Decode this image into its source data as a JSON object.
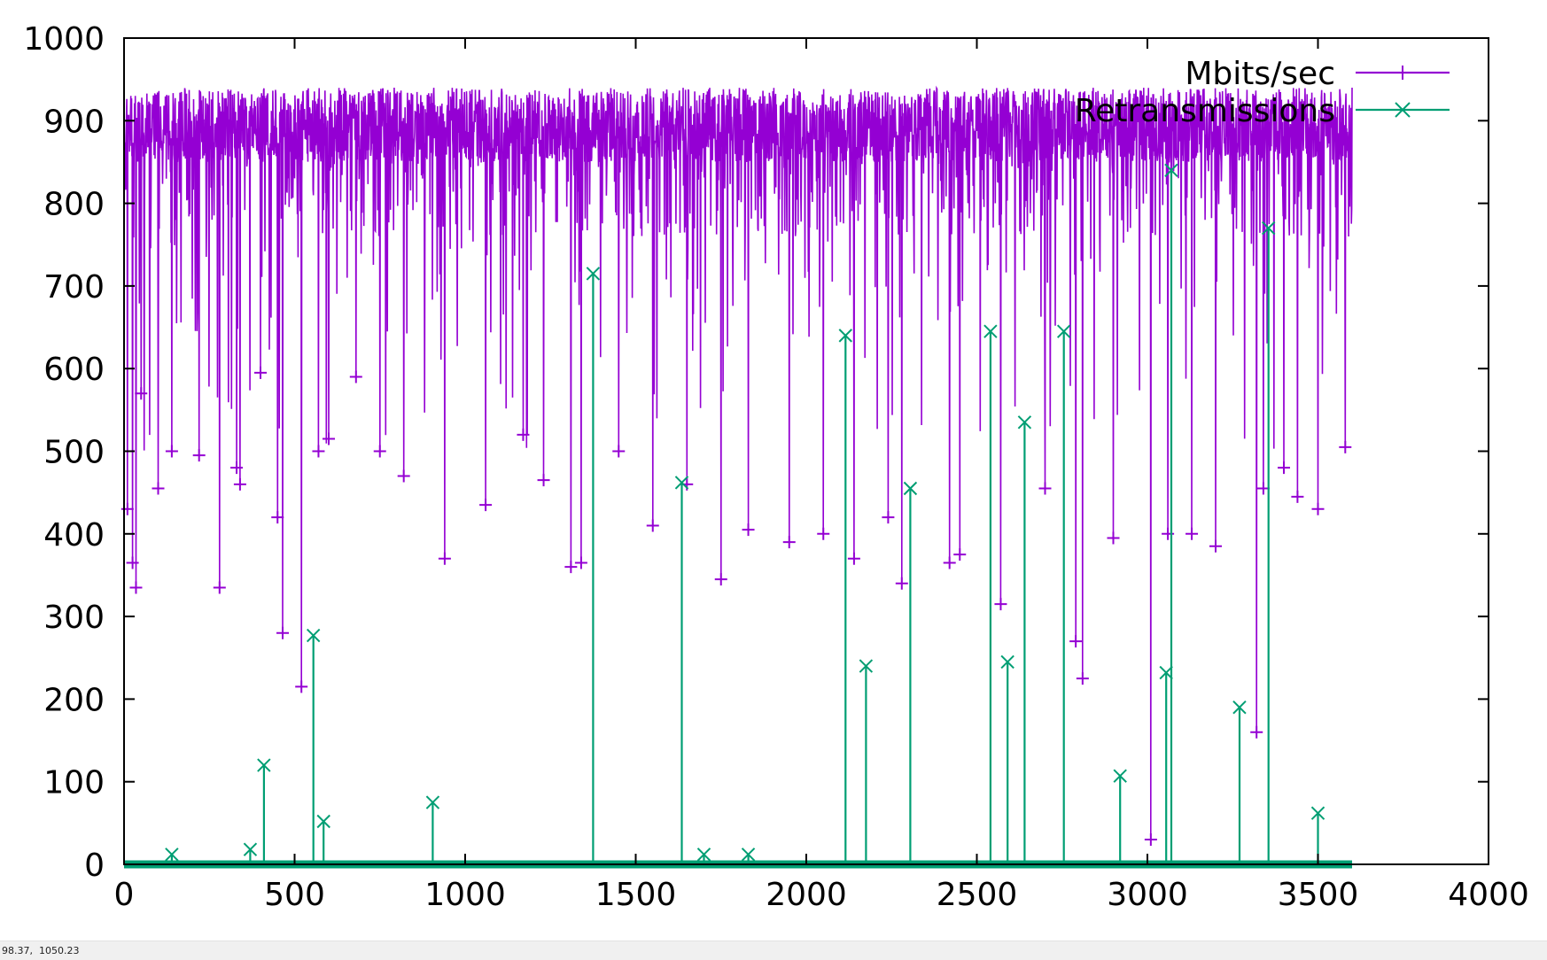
{
  "chart_data": {
    "type": "line",
    "title": "",
    "xlabel": "",
    "ylabel": "",
    "xlim": [
      0,
      4000
    ],
    "ylim": [
      0,
      1000
    ],
    "x_ticks": [
      0,
      500,
      1000,
      1500,
      2000,
      2500,
      3000,
      3500,
      4000
    ],
    "y_ticks": [
      0,
      100,
      200,
      300,
      400,
      500,
      600,
      700,
      800,
      900,
      1000
    ],
    "grid": false,
    "legend_position": "top-right",
    "x_range_of_data": [
      0,
      3600
    ],
    "series": [
      {
        "name": "Mbits/sec",
        "color": "#9400d3",
        "marker": "plus",
        "typical_range": [
          850,
          940
        ],
        "dips": [
          {
            "x": 10,
            "y": 430
          },
          {
            "x": 25,
            "y": 365
          },
          {
            "x": 35,
            "y": 335
          },
          {
            "x": 50,
            "y": 570
          },
          {
            "x": 100,
            "y": 455
          },
          {
            "x": 140,
            "y": 500
          },
          {
            "x": 220,
            "y": 495
          },
          {
            "x": 280,
            "y": 335
          },
          {
            "x": 330,
            "y": 480
          },
          {
            "x": 340,
            "y": 460
          },
          {
            "x": 400,
            "y": 595
          },
          {
            "x": 450,
            "y": 420
          },
          {
            "x": 465,
            "y": 280
          },
          {
            "x": 520,
            "y": 215
          },
          {
            "x": 570,
            "y": 500
          },
          {
            "x": 600,
            "y": 515
          },
          {
            "x": 680,
            "y": 590
          },
          {
            "x": 750,
            "y": 500
          },
          {
            "x": 820,
            "y": 470
          },
          {
            "x": 940,
            "y": 370
          },
          {
            "x": 1060,
            "y": 435
          },
          {
            "x": 1170,
            "y": 520
          },
          {
            "x": 1230,
            "y": 465
          },
          {
            "x": 1310,
            "y": 360
          },
          {
            "x": 1340,
            "y": 365
          },
          {
            "x": 1450,
            "y": 500
          },
          {
            "x": 1550,
            "y": 410
          },
          {
            "x": 1650,
            "y": 460
          },
          {
            "x": 1750,
            "y": 345
          },
          {
            "x": 1830,
            "y": 405
          },
          {
            "x": 1950,
            "y": 390
          },
          {
            "x": 2050,
            "y": 400
          },
          {
            "x": 2140,
            "y": 370
          },
          {
            "x": 2240,
            "y": 420
          },
          {
            "x": 2280,
            "y": 340
          },
          {
            "x": 2420,
            "y": 365
          },
          {
            "x": 2450,
            "y": 375
          },
          {
            "x": 2570,
            "y": 315
          },
          {
            "x": 2700,
            "y": 455
          },
          {
            "x": 2790,
            "y": 270
          },
          {
            "x": 2810,
            "y": 225
          },
          {
            "x": 2900,
            "y": 395
          },
          {
            "x": 3010,
            "y": 30
          },
          {
            "x": 3060,
            "y": 400
          },
          {
            "x": 3130,
            "y": 400
          },
          {
            "x": 3200,
            "y": 385
          },
          {
            "x": 3320,
            "y": 160
          },
          {
            "x": 3340,
            "y": 455
          },
          {
            "x": 3400,
            "y": 480
          },
          {
            "x": 3440,
            "y": 445
          },
          {
            "x": 3500,
            "y": 430
          },
          {
            "x": 3580,
            "y": 505
          }
        ]
      },
      {
        "name": "Retransmissions",
        "color": "#009e73",
        "marker": "cross",
        "baseline": 0,
        "spikes": [
          {
            "x": 140,
            "y": 12
          },
          {
            "x": 370,
            "y": 18
          },
          {
            "x": 410,
            "y": 120
          },
          {
            "x": 555,
            "y": 277
          },
          {
            "x": 585,
            "y": 52
          },
          {
            "x": 905,
            "y": 75
          },
          {
            "x": 1375,
            "y": 715
          },
          {
            "x": 1635,
            "y": 462
          },
          {
            "x": 1700,
            "y": 12
          },
          {
            "x": 1830,
            "y": 12
          },
          {
            "x": 2115,
            "y": 640
          },
          {
            "x": 2175,
            "y": 240
          },
          {
            "x": 2305,
            "y": 455
          },
          {
            "x": 2540,
            "y": 645
          },
          {
            "x": 2590,
            "y": 245
          },
          {
            "x": 2640,
            "y": 535
          },
          {
            "x": 2755,
            "y": 645
          },
          {
            "x": 2920,
            "y": 107
          },
          {
            "x": 3055,
            "y": 232
          },
          {
            "x": 3070,
            "y": 840
          },
          {
            "x": 3270,
            "y": 190
          },
          {
            "x": 3355,
            "y": 770
          },
          {
            "x": 3500,
            "y": 62
          }
        ]
      }
    ]
  },
  "status_bar": {
    "coordinates": "98.37,  1050.23"
  }
}
